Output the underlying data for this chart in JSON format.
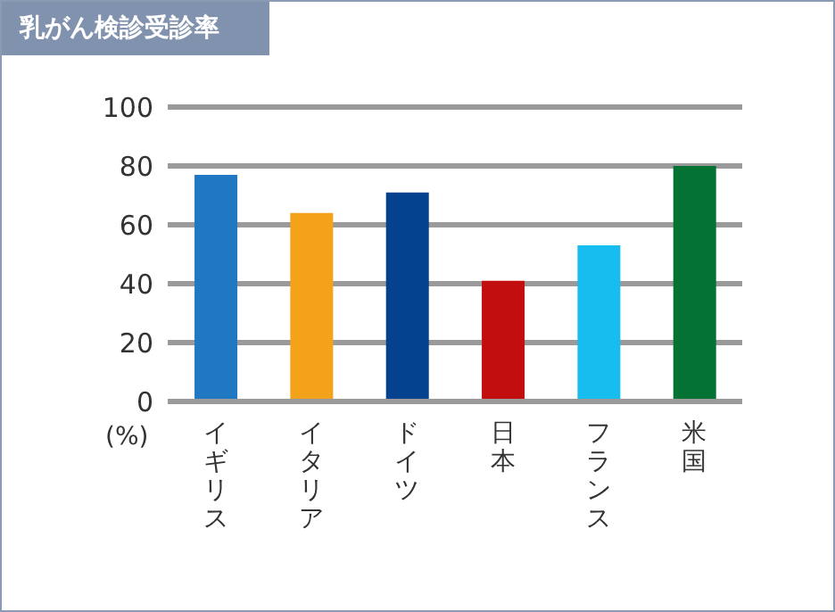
{
  "chart_data": {
    "type": "bar",
    "title": "乳がん検診受診率",
    "ylabel": "(%)",
    "categories": [
      "イギリス",
      "イタリア",
      "ドイツ",
      "日本",
      "フランス",
      "米国"
    ],
    "values": [
      77,
      64,
      71,
      41,
      53,
      80
    ],
    "colors": [
      "#1f78c1",
      "#f4a21a",
      "#04418e",
      "#c20e0e",
      "#17bdee",
      "#037233"
    ],
    "ylim": [
      0,
      100
    ],
    "yticks": [
      0,
      20,
      40,
      60,
      80,
      100
    ],
    "grid": "y"
  }
}
